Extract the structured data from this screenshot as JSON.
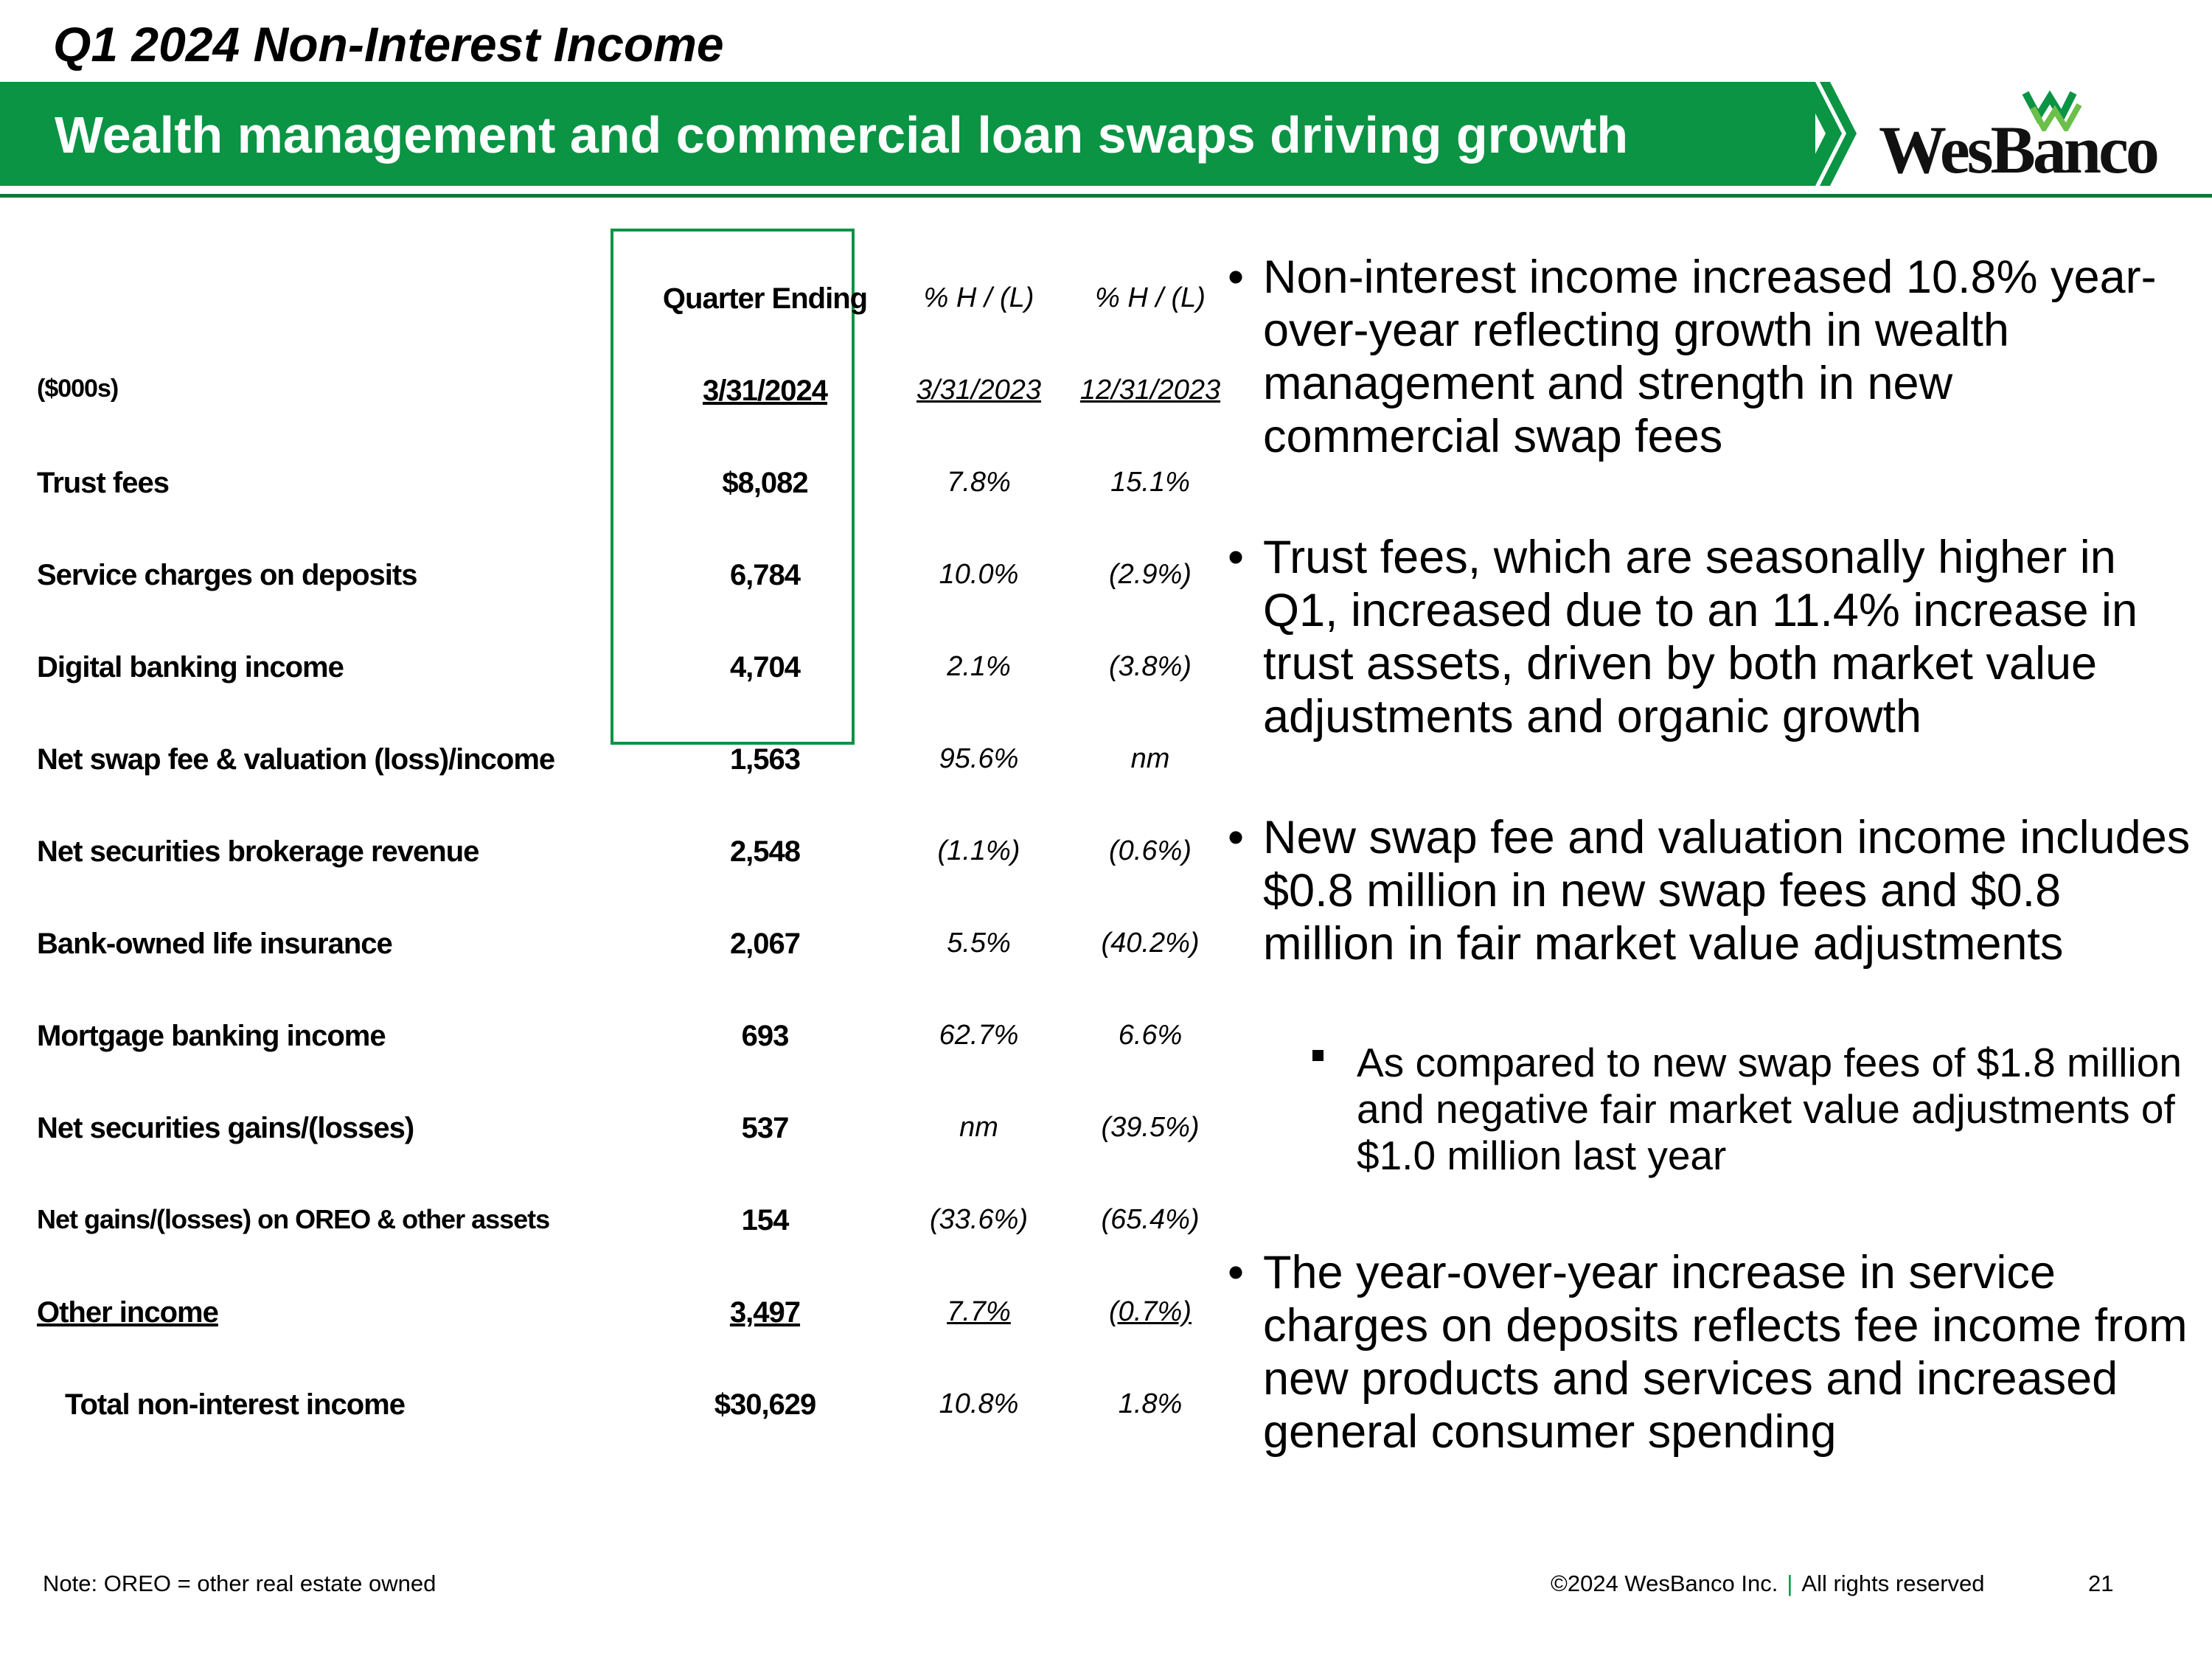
{
  "header": {
    "title": "Q1 2024 Non-Interest Income",
    "banner": "Wealth management and commercial loan swaps driving growth",
    "logo_text": "WesBanco",
    "brand_color": "#0a9444"
  },
  "table": {
    "headers": {
      "quarter_ending": "Quarter Ending",
      "pct1": "% H / (L)",
      "pct2": "% H / (L)"
    },
    "units_label": "($000s)",
    "dates": {
      "q": "3/31/2024",
      "p1": "3/31/2023",
      "p2": "12/31/2023"
    },
    "rows": [
      {
        "label": "Trust fees",
        "q": "$8,082",
        "p1": "7.8%",
        "p2": "15.1%"
      },
      {
        "label": "Service charges on deposits",
        "q": "6,784",
        "p1": "10.0%",
        "p2": "(2.9%)"
      },
      {
        "label": "Digital banking income",
        "q": "4,704",
        "p1": "2.1%",
        "p2": "(3.8%)"
      },
      {
        "label": "Net swap fee & valuation (loss)/income",
        "q": "1,563",
        "p1": "95.6%",
        "p2": "nm"
      },
      {
        "label": "Net securities brokerage revenue",
        "q": "2,548",
        "p1": "(1.1%)",
        "p2": "(0.6%)"
      },
      {
        "label": "Bank-owned life insurance",
        "q": "2,067",
        "p1": "5.5%",
        "p2": "(40.2%)"
      },
      {
        "label": "Mortgage banking income",
        "q": "693",
        "p1": "62.7%",
        "p2": "6.6%"
      },
      {
        "label": "Net securities gains/(losses)",
        "q": "537",
        "p1": "nm",
        "p2": "(39.5%)"
      },
      {
        "label": "Net gains/(losses) on OREO & other assets",
        "q": "154",
        "p1": "(33.6%)",
        "p2": "(65.4%)"
      },
      {
        "label": "Other income",
        "q": "3,497",
        "p1": "7.7%",
        "p2": "(0.7%)"
      }
    ],
    "total": {
      "label": "Total non-interest income",
      "q": "$30,629",
      "p1": "10.8%",
      "p2": "1.8%"
    }
  },
  "bullets": [
    "Non-interest income increased 10.8% year-over-year reflecting growth in wealth management and strength in new commercial swap fees",
    "Trust fees, which are seasonally higher in Q1, increased due to an 11.4% increase in trust assets, driven by both market value adjustments and organic growth",
    "New swap fee and valuation income includes $0.8 million in new swap fees and $0.8 million in fair market value adjustments",
    "The year-over-year increase in service charges on deposits reflects fee income from new products and services and increased general consumer spending"
  ],
  "sub_bullet": "As compared to new swap fees of $1.8 million and negative fair market value adjustments of $1.0 million last year",
  "footer": {
    "note": "Note: OREO = other real estate owned",
    "copyright": "©2024 WesBanco Inc.",
    "separator": "|",
    "rights": "All rights reserved",
    "page": "21"
  }
}
